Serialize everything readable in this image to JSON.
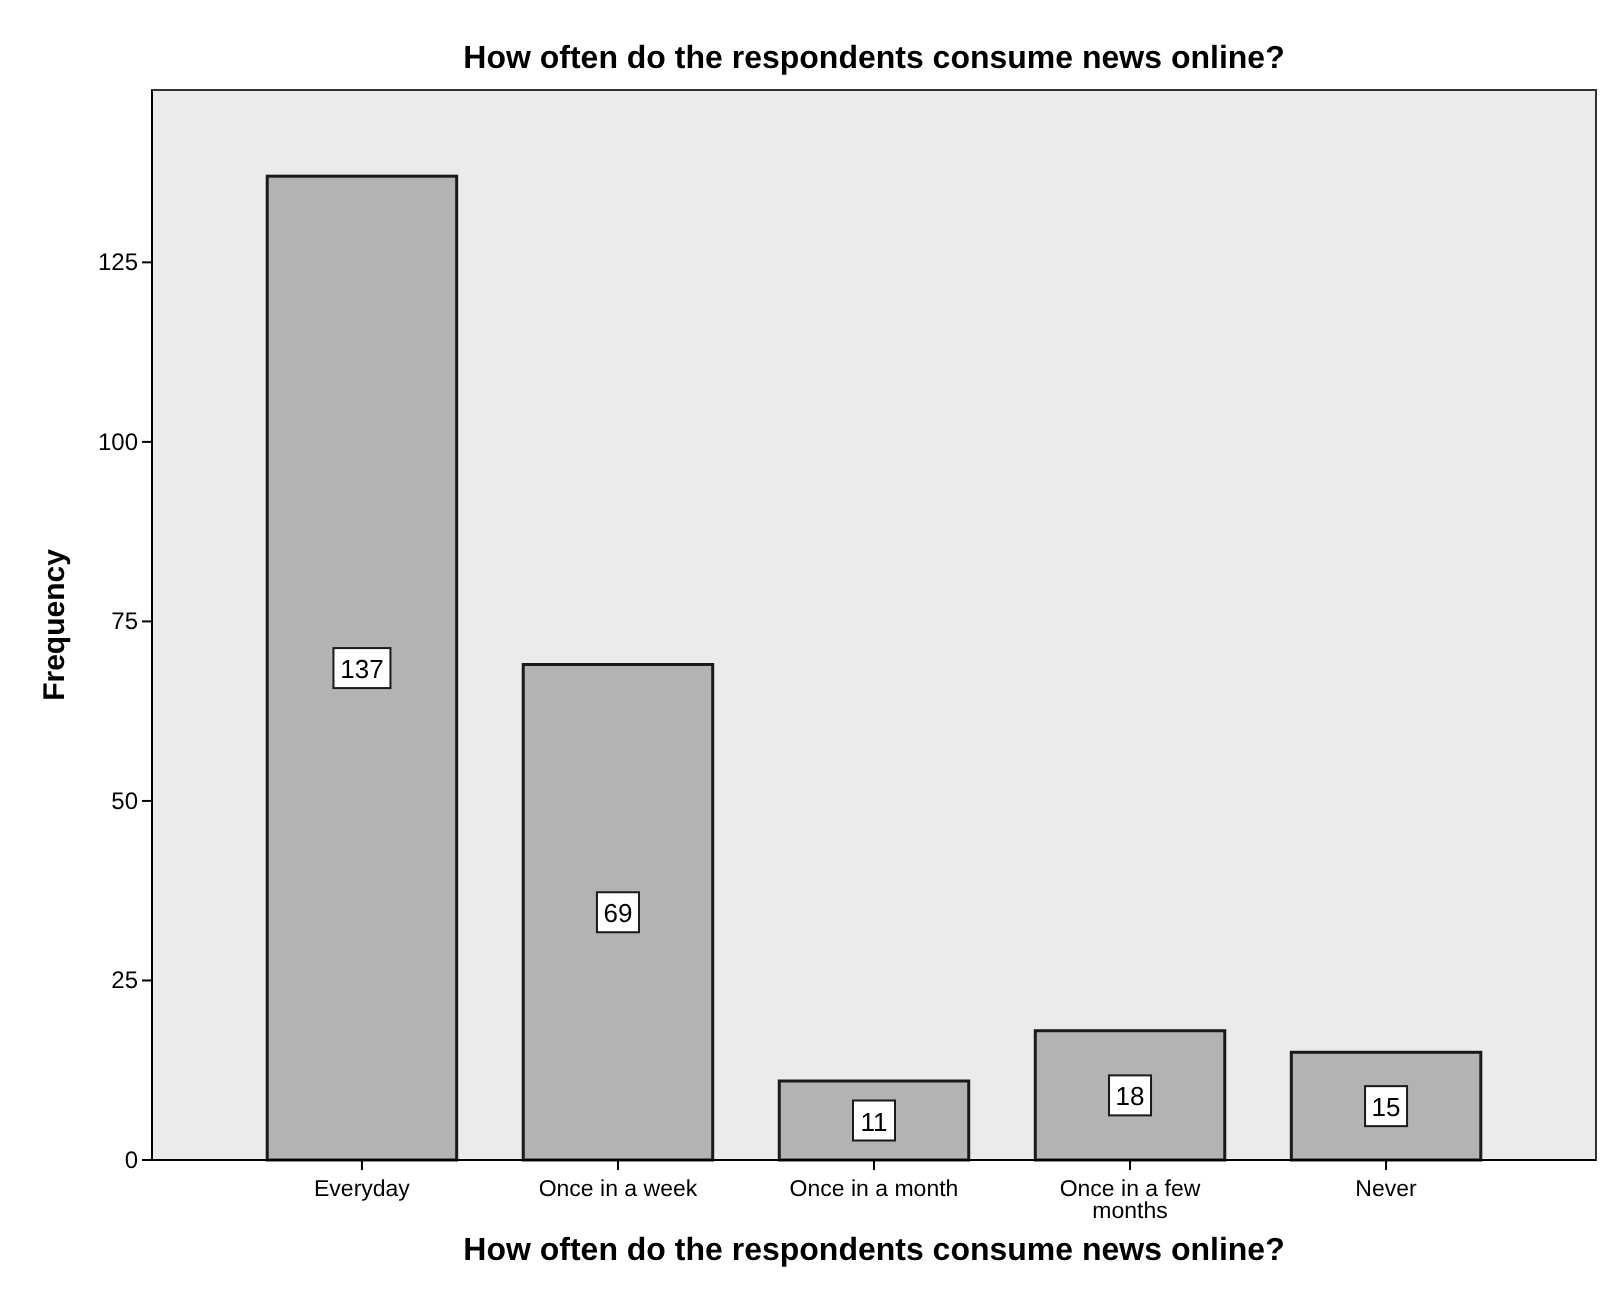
{
  "chart_data": {
    "type": "bar",
    "title": "How often do the respondents consume news online?",
    "xlabel": "How often do the respondents consume news online?",
    "ylabel": "Frequency",
    "categories": [
      "Everyday",
      "Once in a week",
      "Once in a month",
      "Once in a few months",
      "Never"
    ],
    "values": [
      137,
      69,
      11,
      18,
      15
    ],
    "color": "#b3b3b3",
    "ylim": [
      0,
      149
    ],
    "yticks": [
      0,
      25,
      50,
      75,
      100,
      125
    ],
    "grid": false,
    "data_labels": true
  }
}
